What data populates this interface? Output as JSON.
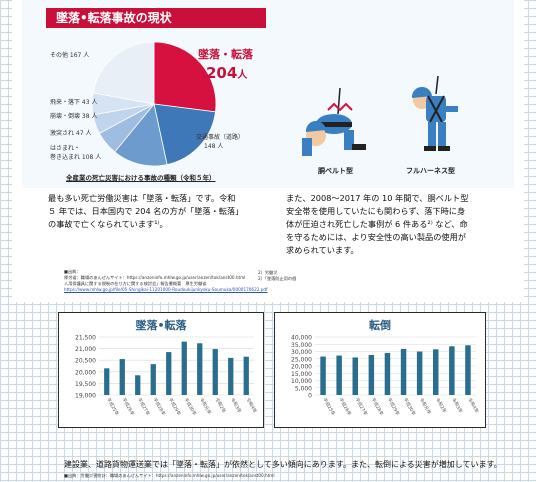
{
  "header": {
    "title": "墜落•転落事故の現状"
  },
  "pie": {
    "highlight_label": "墜落・転落",
    "highlight_value": "204",
    "highlight_unit": "人",
    "slices": [
      {
        "label": "墜落・転落",
        "value": 204,
        "color": "#d6103f"
      },
      {
        "label": "交通事故（道路）",
        "value": 148,
        "color": "#3e78b9"
      },
      {
        "label": "はさまれ・巻き込まれ",
        "value": 108,
        "color": "#6d9bcd"
      },
      {
        "label": "激突され",
        "value": 47,
        "color": "#9fbde0"
      },
      {
        "label": "崩壊・倒壊",
        "value": 38,
        "color": "#c0d4ec"
      },
      {
        "label": "飛来・落下",
        "value": 43,
        "color": "#d6e3f2"
      },
      {
        "label": "その他",
        "value": 167,
        "color": "#e9eff7"
      }
    ],
    "ext_labels": [
      "その他 167 人",
      "飛来・落下 43 人",
      "崩壊・倒壊 38 人",
      "激突され 47 人",
      "はさまれ・",
      "巻き込まれ 108 人",
      "交通事故（道路）",
      "148 人"
    ],
    "caption": "全産業の死亡災害における事故の種類（令和５年）"
  },
  "figures": {
    "left_caption": "胴ベルト型",
    "right_caption": "フルハーネス型"
  },
  "para_left": [
    "最も多い死亡労働災害は「墜落・転落」です。令和",
    "５ 年では、日本国内で 204 名の方が「墜落・転落」",
    "の事故で亡くなられています¹⁾。"
  ],
  "para_right": [
    "また、2008～2017 年の 10 年間で、胴ベルト型",
    "安全帯を使用していたにも関わらず、落下時に身",
    "体が圧迫され死亡した事例が 6 件ある²⁾ など、命",
    "を守るためには、より安全性の高い製品の使用が",
    "求められています。"
  ],
  "sources": {
    "line1": "■出典：",
    "line2": "厚労省：職場のあんぜんサイト：https://anzeninfo.mhlw.go.jp/user/anzen/tok/anst00.html",
    "line3": "人用保護具に関する規制の在り方に関する検討会」報告書概要　厚生労働省",
    "line4": "https://www.mhlw.go.jp/file/05-Shingikai-11201000-Roudoukijunkyoku-Soumuka/0000170622.pdf",
    "right1": "2）労働災",
    "right2": "2）「墜落防止用の個"
  },
  "chart_data": [
    {
      "type": "bar",
      "title": "墜落•転落",
      "categories": [
        "平成25年",
        "平成26年",
        "平成27年",
        "平成28年",
        "平成29年",
        "平成30年",
        "令和元年",
        "令和2年",
        "令和3年",
        "令和4年"
      ],
      "values": [
        20150,
        20550,
        19850,
        20330,
        20850,
        21300,
        21230,
        20980,
        20600,
        20650
      ],
      "ylim": [
        19000,
        21500
      ],
      "yticks": [
        "21,500",
        "21,000",
        "20,500",
        "20,000",
        "19,500",
        "19,000"
      ],
      "color": "#2a6e8f"
    },
    {
      "type": "bar",
      "title": "転倒",
      "categories": [
        "平成25年",
        "平成26年",
        "平成27年",
        "平成28年",
        "平成29年",
        "平成30年",
        "令和元年",
        "令和2年",
        "令和3年",
        "令和4年"
      ],
      "values": [
        26500,
        27200,
        25900,
        27600,
        29000,
        31800,
        30000,
        31500,
        33600,
        34300
      ],
      "ylim": [
        0,
        40000
      ],
      "yticks": [
        "40,000",
        "35,000",
        "30,000",
        "25,000",
        "20,000",
        "15,000",
        "10,000",
        "5,000",
        "0"
      ],
      "color": "#2a6e8f"
    }
  ],
  "bottom": {
    "text": "建設業、道路貨物運送業では「墜落・転落」が依然として多い傾向にあります。また、転倒による災害が増加しています。",
    "source": "■出典：労働災害統計：職場のあんぜんサイト：https://anzeninfo.mhlw.go.jp/user/anzen/tok/anst00.html"
  }
}
